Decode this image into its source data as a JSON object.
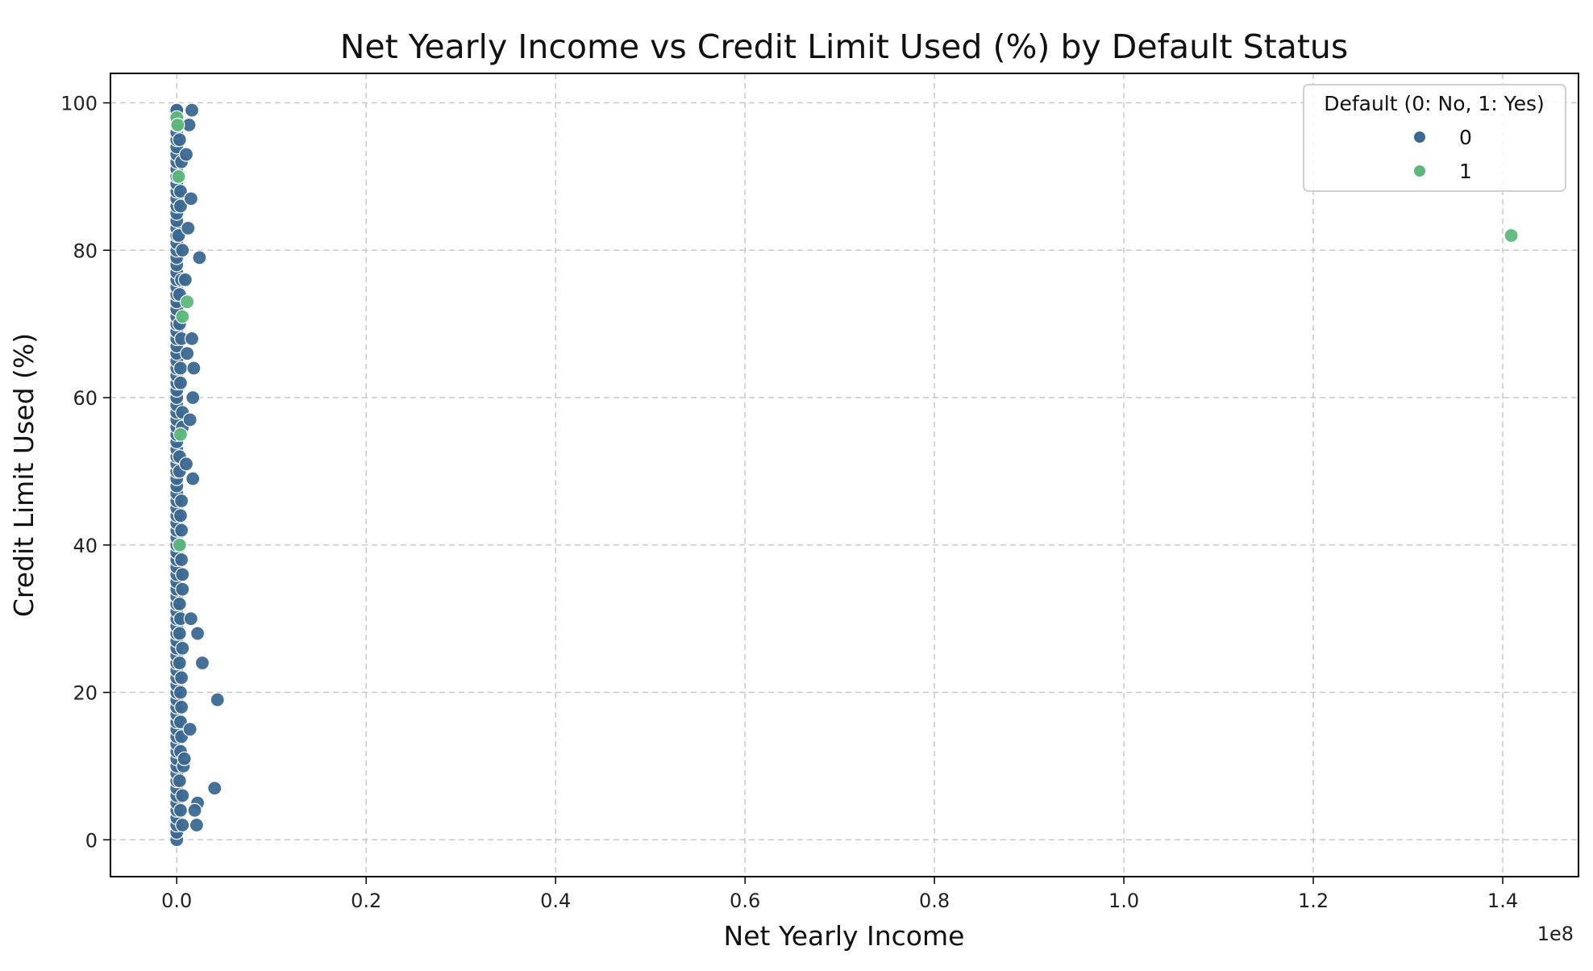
{
  "chart_data": {
    "type": "scatter",
    "title": "Net Yearly Income vs Credit Limit Used (%) by Default Status",
    "xlabel": "Net Yearly Income",
    "ylabel": "Credit Limit Used (%)",
    "x_offset_label": "1e8",
    "xlim": [
      -0.07,
      1.48
    ],
    "ylim": [
      -5,
      104
    ],
    "xticks": [
      0.0,
      0.2,
      0.4,
      0.6,
      0.8,
      1.0,
      1.2,
      1.4
    ],
    "xtick_labels": [
      "0.0",
      "0.2",
      "0.4",
      "0.6",
      "0.8",
      "1.0",
      "1.2",
      "1.4"
    ],
    "yticks": [
      0,
      20,
      40,
      60,
      80,
      100
    ],
    "ytick_labels": [
      "0",
      "20",
      "40",
      "60",
      "80",
      "100"
    ],
    "grid": true,
    "legend": {
      "title": "Default (0: No, 1: Yes)",
      "placement": "top-right",
      "entries": [
        "0",
        "1"
      ]
    },
    "colors": {
      "0": "#3b6891",
      "1": "#5cb87a"
    },
    "series": [
      {
        "name": "0",
        "color": "#3b6891",
        "x": [
          0.0,
          0.0,
          0.0,
          0.0,
          0.0,
          0.0,
          0.0,
          0.0,
          0.0,
          0.0,
          0.0,
          0.0,
          0.0,
          0.0,
          0.0,
          0.0,
          0.0,
          0.0,
          0.0,
          0.0,
          0.0,
          0.0,
          0.0,
          0.0,
          0.0,
          0.0,
          0.0,
          0.0,
          0.0,
          0.0,
          0.0,
          0.0,
          0.0,
          0.0,
          0.0,
          0.0,
          0.0,
          0.0,
          0.0,
          0.0,
          0.0,
          0.0,
          0.0,
          0.0,
          0.0,
          0.0,
          0.0,
          0.0,
          0.0,
          0.0,
          0.0,
          0.0,
          0.0,
          0.0,
          0.0,
          0.0,
          0.0,
          0.0,
          0.0,
          0.0,
          0.0,
          0.0,
          0.0,
          0.0,
          0.0,
          0.0,
          0.0,
          0.0,
          0.0,
          0.0,
          0.0,
          0.0,
          0.0,
          0.0,
          0.0,
          0.0,
          0.0,
          0.0,
          0.0,
          0.0,
          0.0,
          0.0,
          0.0,
          0.0,
          0.0,
          0.0,
          0.0,
          0.0,
          0.0,
          0.0,
          0.0,
          0.0,
          0.0,
          0.0,
          0.0,
          0.0,
          0.0,
          0.0,
          0.0,
          0.0,
          0.0,
          0.003,
          0.004,
          0.002,
          0.005,
          0.003,
          0.004,
          0.006,
          0.003,
          0.005,
          0.004,
          0.006,
          0.003,
          0.005,
          0.004,
          0.007,
          0.004,
          0.006,
          0.003,
          0.005,
          0.004,
          0.006,
          0.003,
          0.005,
          0.004,
          0.003,
          0.006,
          0.004,
          0.005,
          0.003,
          0.006,
          0.004,
          0.005,
          0.003,
          0.006,
          0.004,
          0.005,
          0.003,
          0.004,
          0.006,
          0.005,
          0.016,
          0.013,
          0.024,
          0.01,
          0.015,
          0.016,
          0.018,
          0.017,
          0.014,
          0.017,
          0.015,
          0.022,
          0.027,
          0.043,
          0.014,
          0.022,
          0.04,
          0.019,
          0.021,
          0.012,
          0.009,
          0.011,
          0.01,
          0.008
        ],
        "y": [
          0,
          1,
          2,
          3,
          4,
          5,
          6,
          7,
          8,
          9,
          10,
          11,
          12,
          13,
          14,
          15,
          16,
          17,
          18,
          19,
          20,
          21,
          22,
          23,
          24,
          25,
          26,
          27,
          28,
          29,
          30,
          31,
          32,
          33,
          34,
          35,
          36,
          37,
          38,
          39,
          40,
          41,
          42,
          43,
          44,
          45,
          46,
          47,
          48,
          49,
          50,
          51,
          52,
          53,
          54,
          55,
          56,
          57,
          58,
          59,
          60,
          61,
          62,
          63,
          64,
          65,
          66,
          67,
          68,
          69,
          70,
          71,
          72,
          73,
          74,
          75,
          76,
          77,
          78,
          79,
          80,
          81,
          82,
          83,
          84,
          85,
          86,
          87,
          88,
          89,
          90,
          91,
          92,
          93,
          94,
          95,
          96,
          97,
          98,
          99,
          99,
          95,
          88,
          82,
          76,
          70,
          64,
          58,
          52,
          46,
          40,
          34,
          28,
          22,
          16,
          10,
          4,
          2,
          8,
          14,
          20,
          26,
          32,
          38,
          44,
          50,
          56,
          62,
          68,
          74,
          80,
          86,
          92,
          97,
          6,
          12,
          18,
          24,
          30,
          36,
          42,
          99,
          97,
          79,
          93,
          87,
          68,
          64,
          60,
          57,
          49,
          30,
          28,
          24,
          19,
          15,
          5,
          7,
          4,
          2,
          83,
          76,
          66,
          51,
          11
        ],
        "sizes": null
      },
      {
        "name": "1",
        "color": "#5cb87a",
        "x": [
          0.0,
          0.001,
          0.011,
          0.006,
          0.002,
          0.004,
          0.003,
          1.409
        ],
        "y": [
          98,
          97,
          73,
          71,
          90,
          55,
          40,
          82
        ]
      }
    ]
  }
}
